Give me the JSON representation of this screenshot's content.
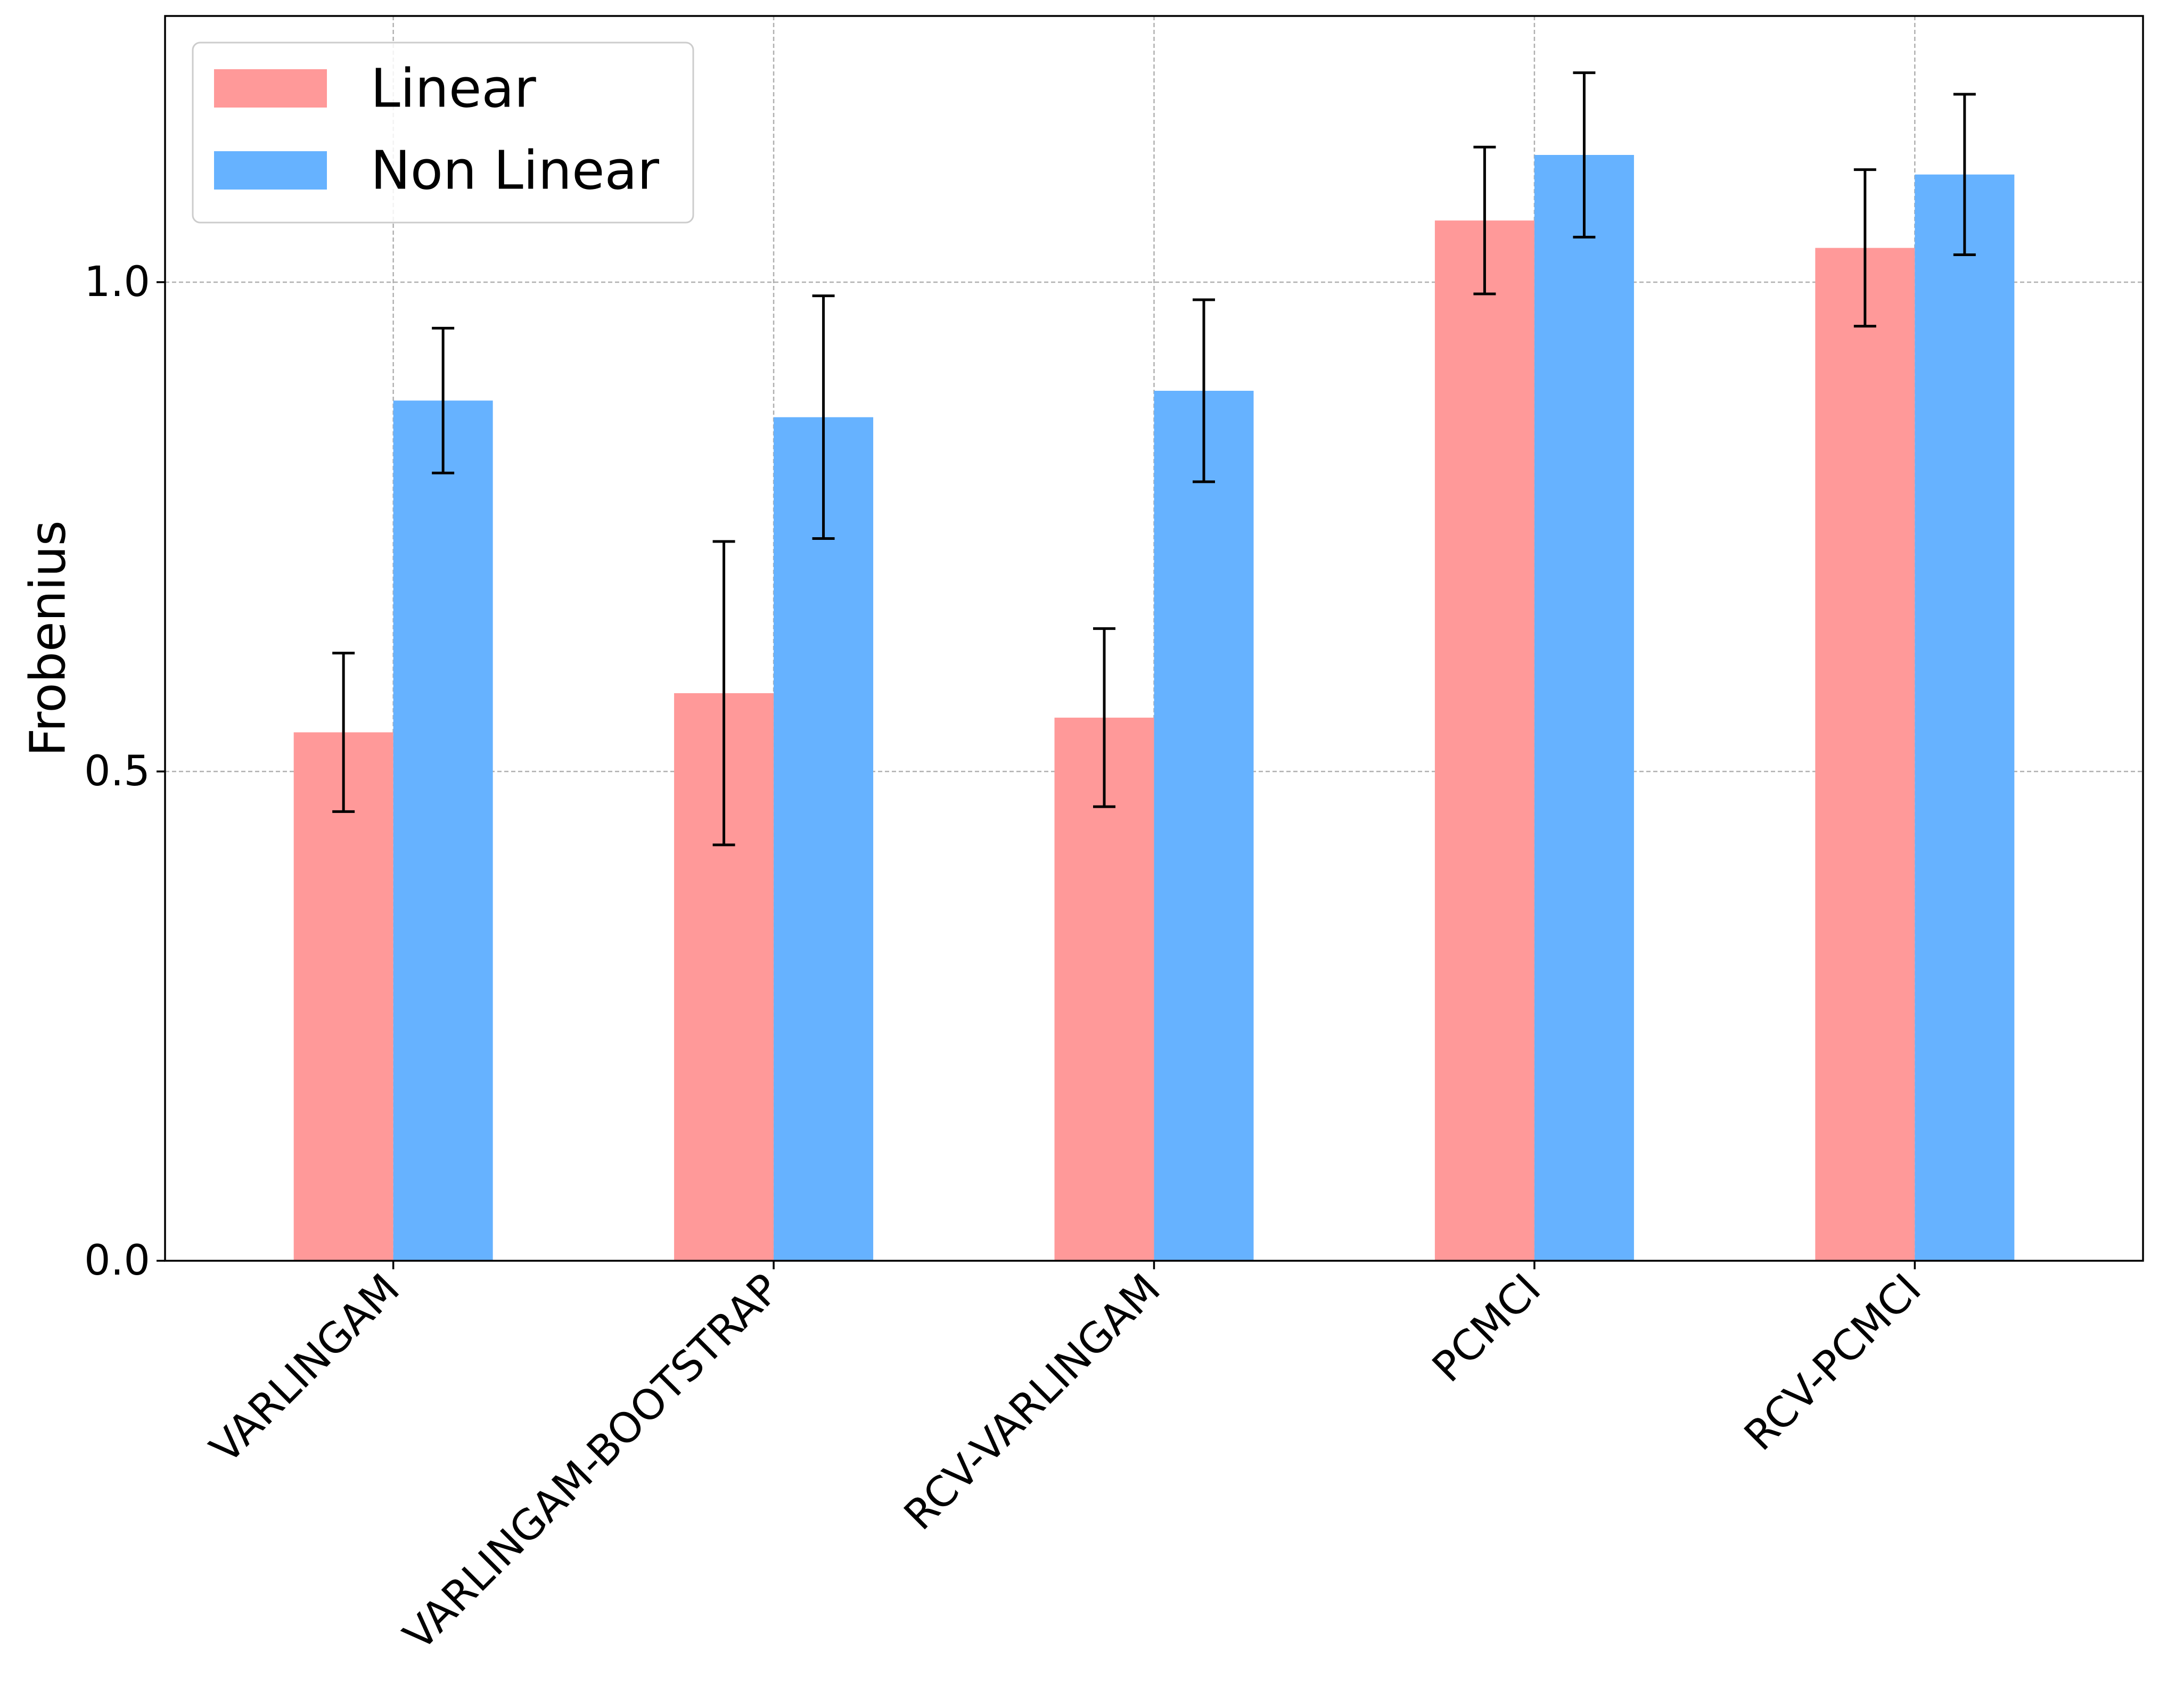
{
  "chart_data": {
    "type": "bar",
    "title": "",
    "xlabel": "",
    "ylabel": "Frobenius",
    "categories": [
      "VARLINGAM",
      "VARLINGAM-BOOTSTRAP",
      "RCV-VARLINGAM",
      "PCMCI",
      "RCV-PCMCI"
    ],
    "series": [
      {
        "name": "Linear",
        "color": "#ff9999",
        "values": [
          0.54,
          0.58,
          0.555,
          1.063,
          1.035
        ],
        "errors": [
          0.081,
          0.155,
          0.091,
          0.075,
          0.08
        ]
      },
      {
        "name": "Non Linear",
        "color": "#66b2ff",
        "values": [
          0.879,
          0.862,
          0.889,
          1.13,
          1.11
        ],
        "errors": [
          0.074,
          0.124,
          0.093,
          0.084,
          0.082
        ]
      }
    ],
    "yticks": [
      0.0,
      0.5,
      1.0
    ],
    "ytick_labels": [
      "0.0",
      "0.5",
      "1.0"
    ],
    "ylim": [
      0,
      1.272
    ],
    "grid": true,
    "legend_position": "top-left",
    "xtick_rotation": 45
  }
}
